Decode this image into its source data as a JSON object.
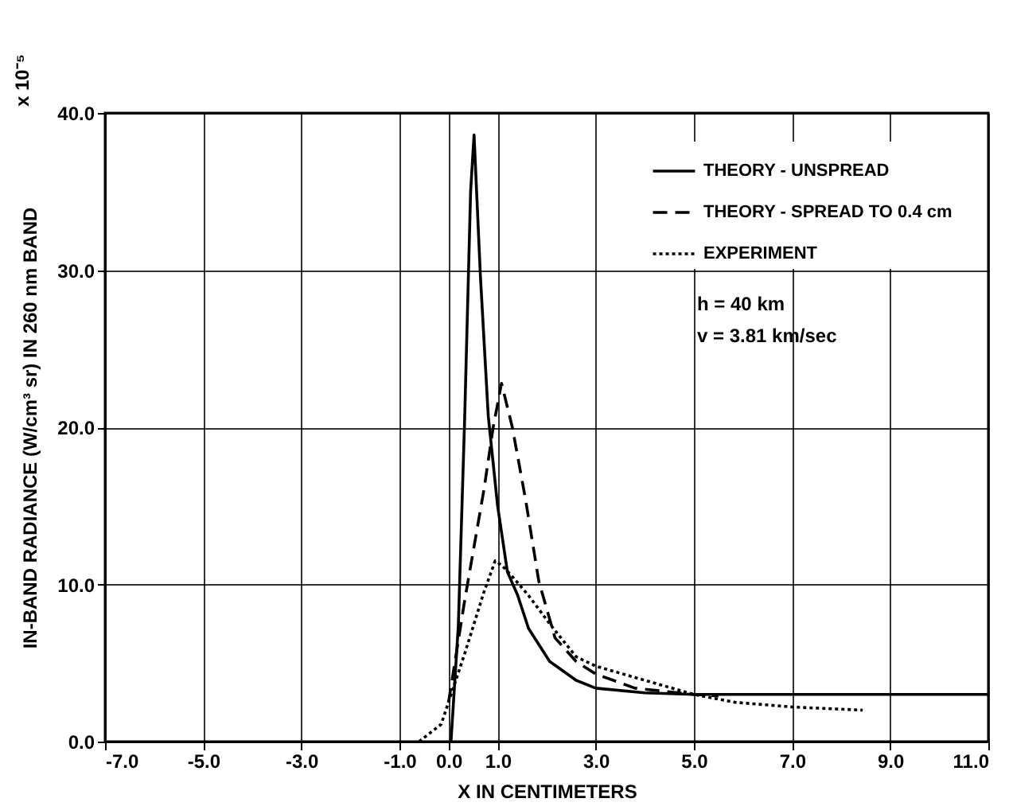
{
  "chart_data": {
    "type": "line",
    "xlabel": "X IN CENTIMETERS",
    "ylabel": "IN-BAND RADIANCE (W/cm³ sr) IN 260 nm BAND",
    "annotations": [
      "h = 40 km",
      "v = 3.81 km/sec",
      "x 10⁻⁵"
    ],
    "xlim": [
      -7,
      11
    ],
    "ylim": [
      0,
      40
    ],
    "xticks": [
      {
        "value": -7,
        "label": "-7.0"
      },
      {
        "value": -5,
        "label": "-5.0"
      },
      {
        "value": -3,
        "label": "-3.0"
      },
      {
        "value": -1,
        "label": "-1.0"
      },
      {
        "value": 0,
        "label": "0.0"
      },
      {
        "value": 1,
        "label": "1.0"
      },
      {
        "value": 3,
        "label": "3.0"
      },
      {
        "value": 5,
        "label": "5.0"
      },
      {
        "value": 7,
        "label": "7.0"
      },
      {
        "value": 9,
        "label": "9.0"
      },
      {
        "value": 11,
        "label": "11.0"
      }
    ],
    "yticks": [
      {
        "value": 0,
        "label": "0.0"
      },
      {
        "value": 10,
        "label": "10.0"
      },
      {
        "value": 20,
        "label": "20.0"
      },
      {
        "value": 30,
        "label": "30.0"
      },
      {
        "value": 40,
        "label": "40.0"
      }
    ],
    "grid": true,
    "legend": "top right",
    "marker": "none",
    "series": [
      {
        "name": "THEORY - UNSPREAD",
        "color": "#000000",
        "line_style": "solid",
        "x": [
          0.05,
          0.2,
          0.33,
          0.45,
          0.52,
          0.65,
          0.81,
          0.9,
          1.0,
          1.2,
          1.41,
          1.63,
          2.06,
          2.6,
          3,
          4,
          5,
          7,
          9,
          11
        ],
        "values": [
          0,
          7.4,
          20.7,
          35,
          38.6,
          29.6,
          20.7,
          18,
          15,
          10.8,
          9.3,
          7.2,
          5.1,
          3.9,
          3.4,
          3.1,
          3.0,
          3.0,
          3.0,
          3.0
        ]
      },
      {
        "name": "THEORY - SPREAD TO 0.4 cm",
        "color": "#000000",
        "line_style": "dashed",
        "x": [
          0,
          0.33,
          0.72,
          0.91,
          1.08,
          1.3,
          1.57,
          1.84,
          2.17,
          2.6,
          3,
          3.8,
          5,
          5.5
        ],
        "values": [
          2.5,
          9,
          16,
          20,
          22.8,
          20,
          15.4,
          10.2,
          6.6,
          5.1,
          4.3,
          3.4,
          3.0,
          2.9
        ]
      },
      {
        "name": "EXPERIMENT",
        "color": "#000000",
        "line_style": "dotted",
        "x": [
          -0.6,
          -0.15,
          0.33,
          0.72,
          0.95,
          1.09,
          1.3,
          1.63,
          2.06,
          2.6,
          3,
          4,
          5,
          5.84,
          7,
          8.44
        ],
        "values": [
          0,
          1.1,
          5.6,
          9.5,
          11.5,
          11.2,
          10.5,
          9.3,
          7.5,
          5.4,
          4.8,
          3.9,
          3.0,
          2.5,
          2.2,
          2.0
        ]
      }
    ]
  }
}
